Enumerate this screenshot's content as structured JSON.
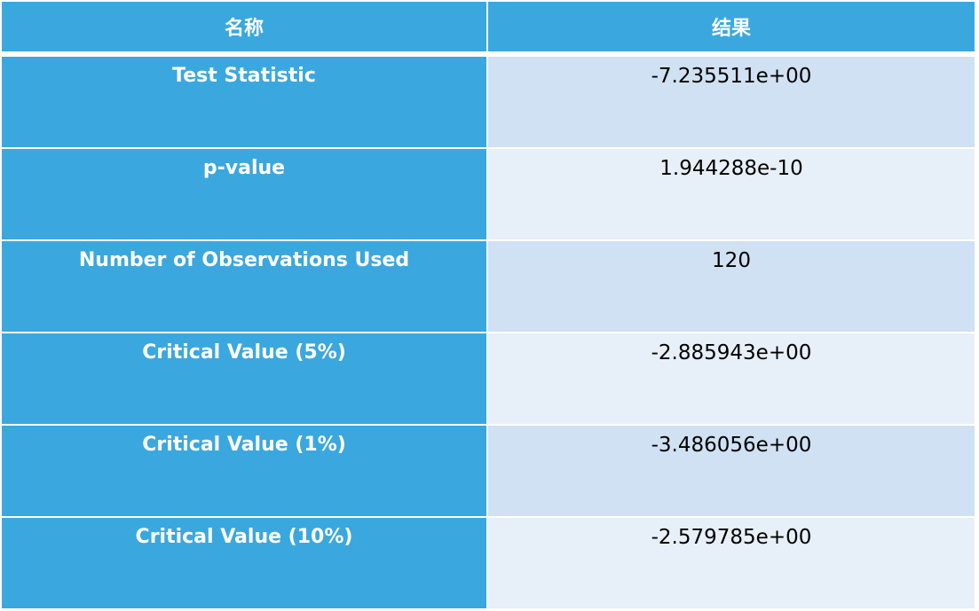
{
  "table": {
    "header": {
      "name": "名称",
      "result": "结果"
    },
    "rows": [
      {
        "name": "Test Statistic",
        "value": "-7.235511e+00"
      },
      {
        "name": "p-value",
        "value": "1.944288e-10"
      },
      {
        "name": "Number of Observations Used",
        "value": "120"
      },
      {
        "name": "Critical Value (5%)",
        "value": "-2.885943e+00"
      },
      {
        "name": "Critical Value (1%)",
        "value": "-3.486056e+00"
      },
      {
        "name": "Critical Value (10%)",
        "value": "-2.579785e+00"
      }
    ]
  },
  "colors": {
    "header_bg": "#3aa8de",
    "name_cell_bg": "#3aa8de",
    "value_band_1": "#cfe1f2",
    "value_band_2": "#e7eff8"
  }
}
